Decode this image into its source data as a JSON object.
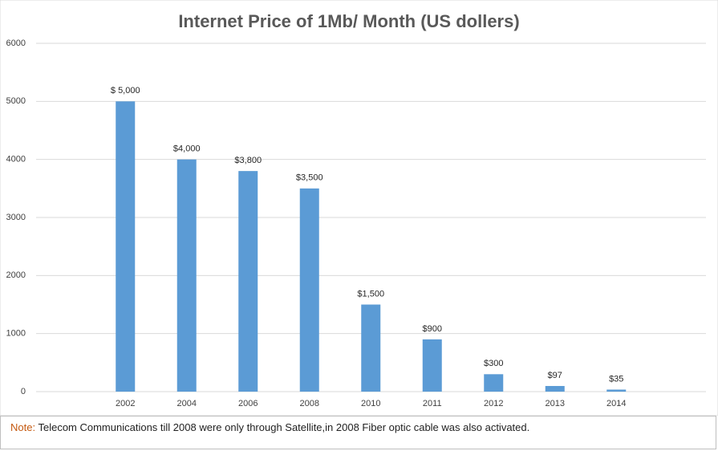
{
  "chart_data": {
    "type": "bar",
    "title": "Internet Price of 1Mb/ Month (US dollers)",
    "categories": [
      "2002",
      "2004",
      "2006",
      "2008",
      "2010",
      "2011",
      "2012",
      "2013",
      "2014"
    ],
    "values": [
      5000,
      4000,
      3800,
      3500,
      1500,
      900,
      300,
      97,
      35
    ],
    "value_labels": [
      "$ 5,000",
      "$4,000",
      "$3,800",
      "$3,500",
      "$1,500",
      "$900",
      "$300",
      "$97",
      "$35"
    ],
    "color": "#5b9bd5",
    "ylim": [
      0,
      6000
    ],
    "yticks": [
      0,
      1000,
      2000,
      3000,
      4000,
      5000,
      6000
    ],
    "grid": true
  },
  "note": {
    "label": "Note:",
    "text": "Telecom Communications till 2008 were only through Satellite,in 2008 Fiber optic cable was also activated."
  }
}
